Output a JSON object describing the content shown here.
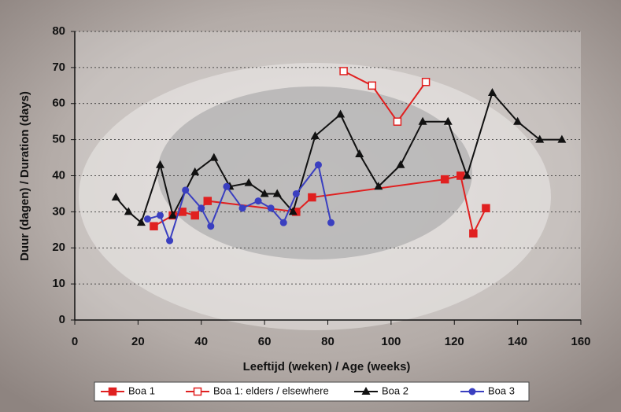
{
  "chart_data": {
    "type": "line",
    "xlabel": "Leeftijd (weken)  /  Age (weeks)",
    "ylabel": "Duur  (dagen)  /  Duration  (days)",
    "xlim": [
      0,
      160
    ],
    "xticks": [
      0,
      20,
      40,
      60,
      80,
      100,
      120,
      140,
      160
    ],
    "ylim": [
      0,
      80
    ],
    "yticks": [
      0,
      10,
      20,
      30,
      40,
      50,
      60,
      70,
      80
    ],
    "grid": true,
    "legend": "bottom",
    "series": [
      {
        "name": "Boa 1",
        "color": "#e02020",
        "marker": "square",
        "x": [
          25,
          31,
          34,
          38,
          42,
          70,
          75,
          117,
          122,
          126,
          130
        ],
        "values": [
          26,
          29,
          30,
          29,
          33,
          30,
          34,
          39,
          40,
          24,
          31
        ]
      },
      {
        "name": "Boa 1: elders / elsewhere",
        "color": "#e02020",
        "marker": "square-open",
        "x": [
          85,
          94,
          102,
          111
        ],
        "values": [
          69,
          65,
          55,
          66
        ]
      },
      {
        "name": "Boa 2",
        "color": "#111111",
        "marker": "triangle",
        "x": [
          13,
          17,
          21,
          27,
          31,
          38,
          44,
          49,
          55,
          60,
          64,
          69,
          76,
          84,
          90,
          96,
          103,
          110,
          118,
          124,
          132,
          140,
          147,
          154
        ],
        "values": [
          34,
          30,
          27,
          43,
          29,
          41,
          45,
          37,
          38,
          35,
          35,
          30,
          51,
          57,
          46,
          37,
          43,
          55,
          55,
          40,
          63,
          55,
          50,
          50
        ]
      },
      {
        "name": "Boa 3",
        "color": "#3a3fc0",
        "marker": "circle",
        "x": [
          23,
          27,
          30,
          35,
          40,
          43,
          48,
          53,
          58,
          62,
          66,
          70,
          77,
          81
        ],
        "values": [
          28,
          29,
          22,
          36,
          31,
          26,
          37,
          31,
          33,
          31,
          27,
          35,
          43,
          27
        ]
      }
    ]
  }
}
